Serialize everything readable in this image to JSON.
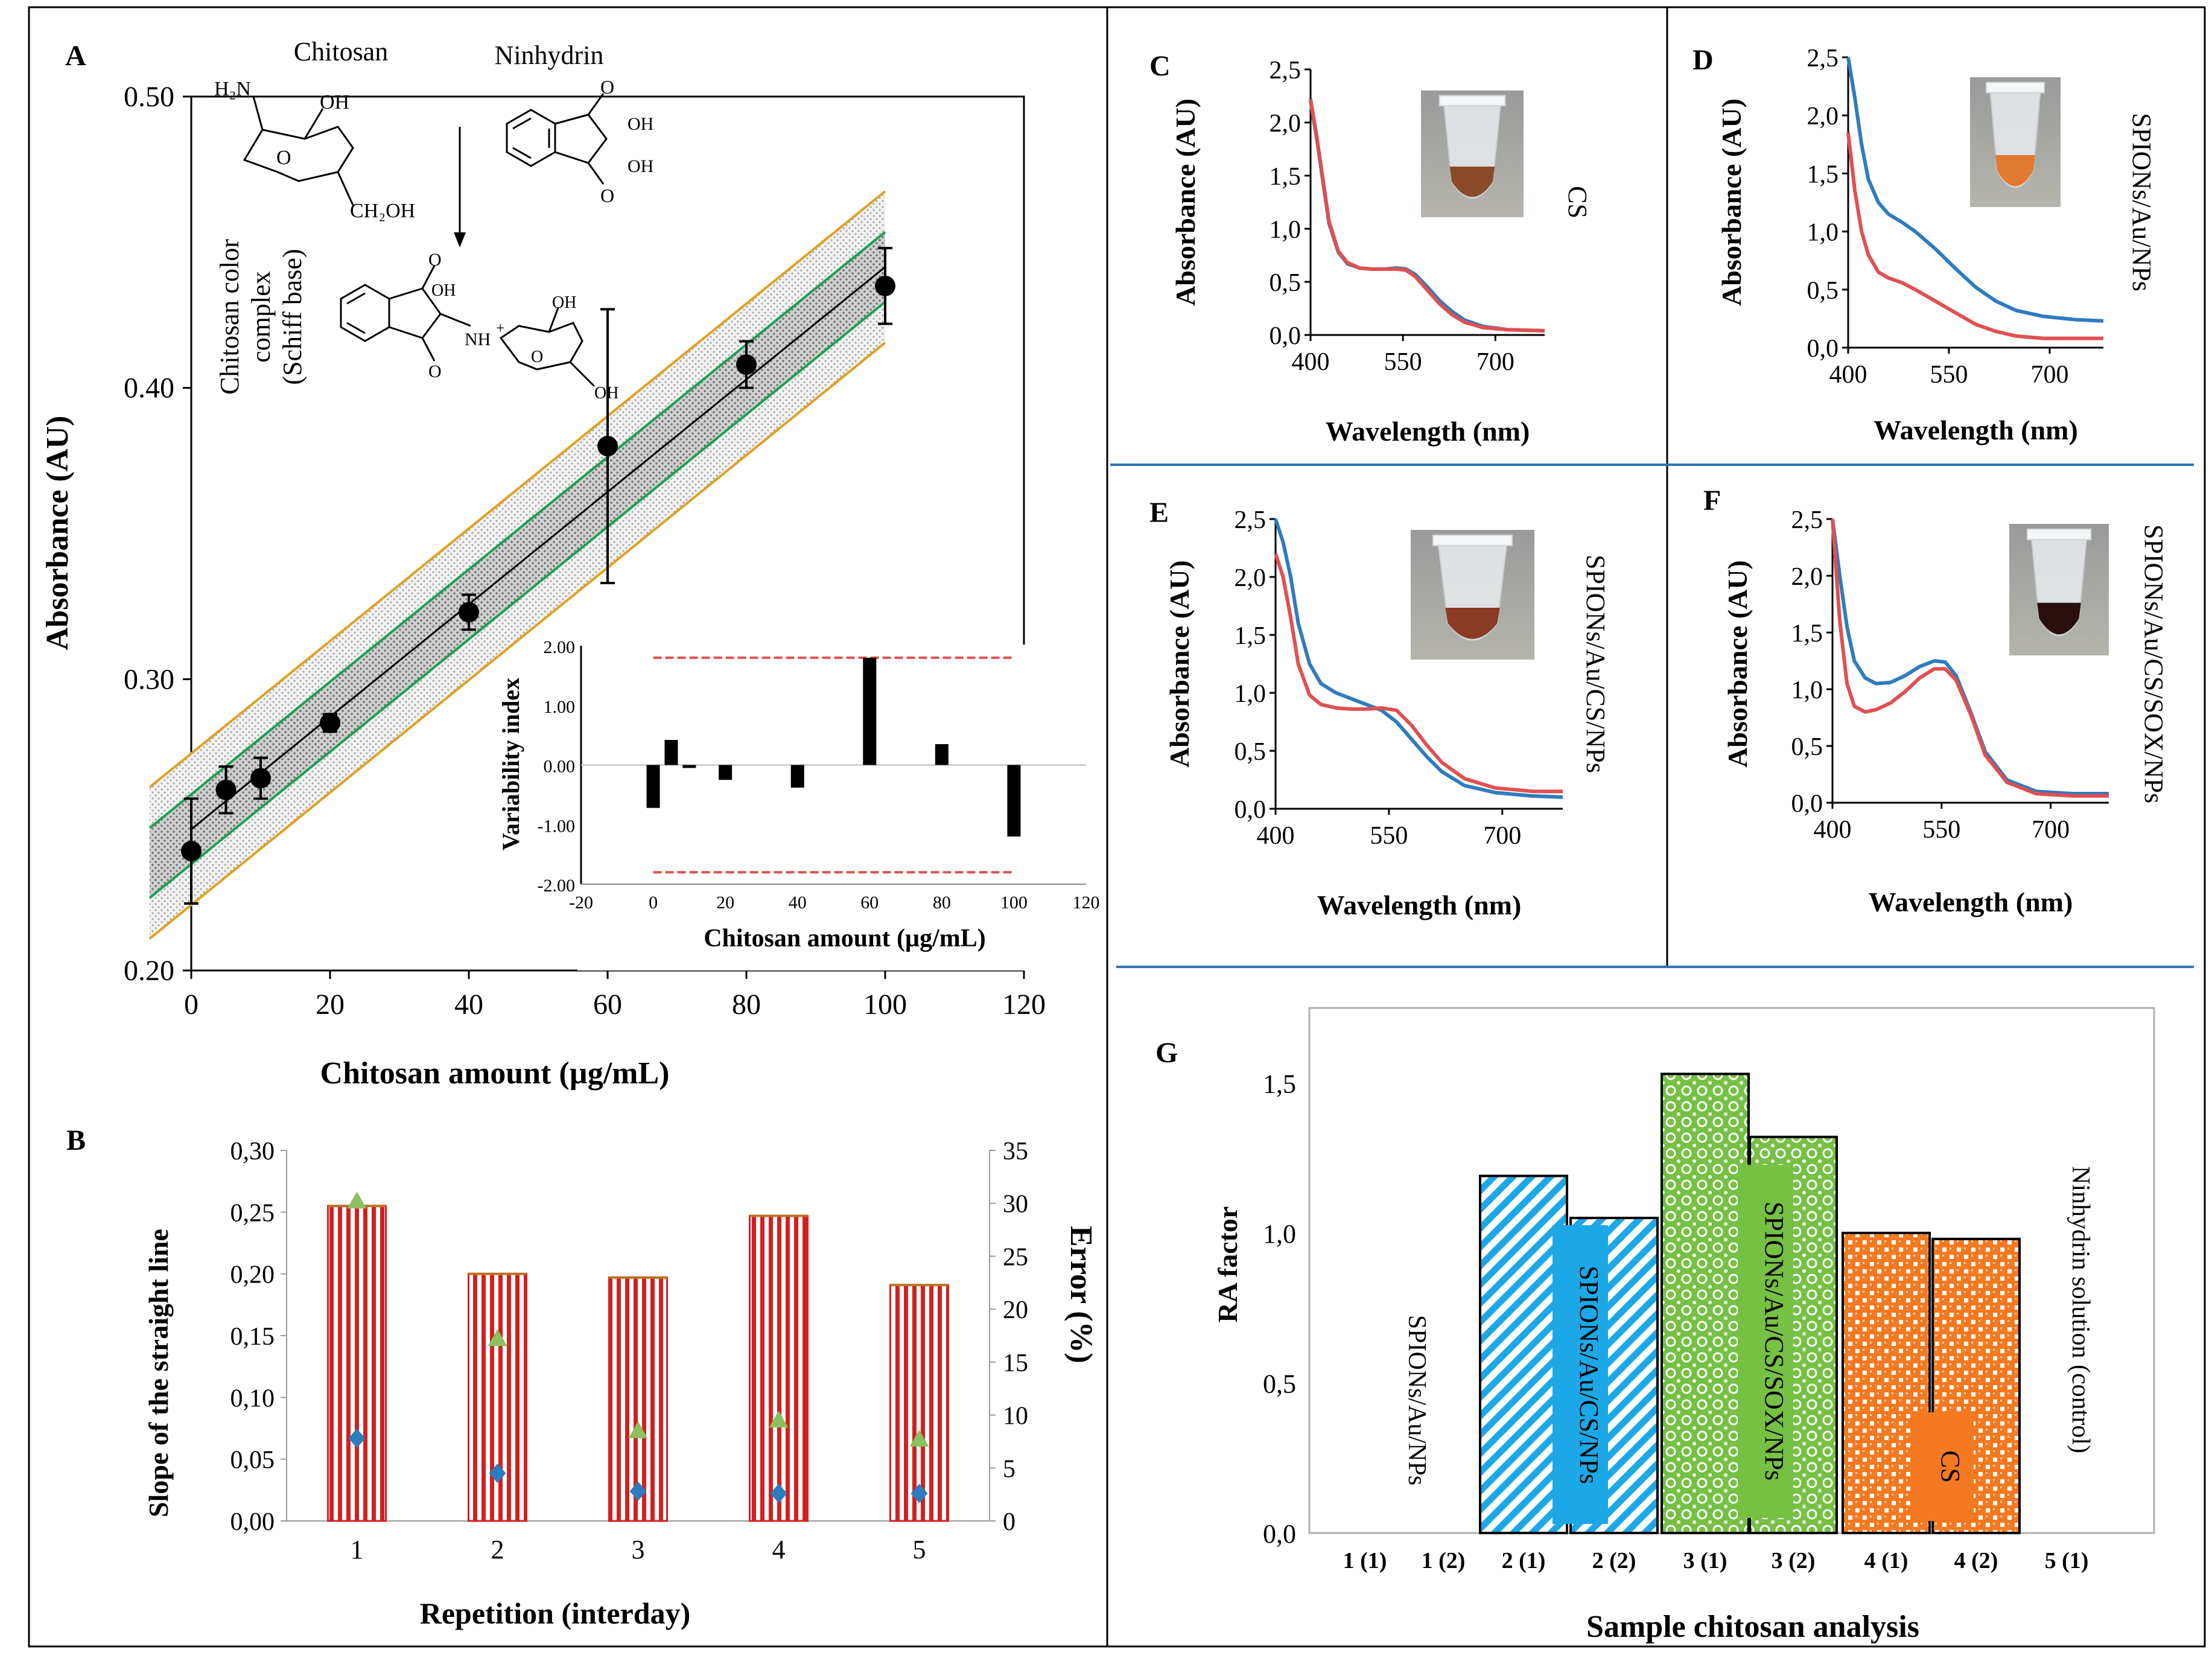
{
  "panels": {
    "A": {
      "label": "A",
      "chart_data": {
        "type": "scatter",
        "xlabel": "Chitosan amount (µg/mL)",
        "ylabel": "Absorbance (AU)",
        "xlim": [
          0,
          120
        ],
        "ylim": [
          0.2,
          0.5
        ],
        "xticks": [
          "0",
          "20",
          "40",
          "60",
          "80",
          "100",
          "120"
        ],
        "yticks": [
          "0.20",
          "0.30",
          "0.40",
          "0.50"
        ],
        "x": [
          0,
          5,
          10,
          20,
          40,
          60,
          80,
          100
        ],
        "y": [
          0.241,
          0.262,
          0.266,
          0.285,
          0.323,
          0.38,
          0.408,
          0.435
        ],
        "err": [
          0.018,
          0.008,
          0.007,
          0.003,
          0.006,
          0.047,
          0.008,
          0.013
        ],
        "fit": {
          "intercept": 0.2485,
          "slope": 0.00193
        },
        "confidence_band": 0.012,
        "prediction_band": 0.026
      },
      "scheme": {
        "chitosan": "Chitosan",
        "ninhydrin": "Ninhydrin",
        "nh2": "H₂N",
        "oh": "OH",
        "ch2oh": "CH₂OH",
        "nh": "NH",
        "plus": "+",
        "complex_lines": [
          "Chitosan color",
          "complex",
          "(Schiff base)"
        ]
      }
    },
    "A_inset": {
      "chart_data": {
        "type": "bar",
        "xlabel": "Chitosan amount (µg/mL)",
        "ylabel": "Variability index",
        "xlim": [
          -20,
          120
        ],
        "ylim": [
          -2.0,
          2.0
        ],
        "xticks": [
          "-20",
          "0",
          "20",
          "40",
          "60",
          "80",
          "100",
          "120"
        ],
        "yticks": [
          "-2.00",
          "-1.00",
          "0.00",
          "1.00",
          "2.00"
        ],
        "x": [
          0,
          5,
          10,
          20,
          40,
          60,
          80,
          100
        ],
        "values": [
          -0.72,
          0.42,
          -0.05,
          -0.25,
          -0.38,
          1.8,
          0.35,
          -1.2
        ],
        "limit": 1.8
      }
    },
    "B": {
      "label": "B",
      "chart_data": {
        "type": "bar",
        "xlabel": "Repetition (interday)",
        "ylabel": "Slope of the straight line",
        "y2label": "Error (%)",
        "categories": [
          "1",
          "2",
          "3",
          "4",
          "5"
        ],
        "ylim": [
          0,
          0.3
        ],
        "y2lim": [
          0,
          35
        ],
        "yticks": [
          "0,00",
          "0,05",
          "0,10",
          "0,15",
          "0,20",
          "0,25",
          "0,30"
        ],
        "y2ticks": [
          "0",
          "5",
          "10",
          "15",
          "20",
          "25",
          "30",
          "35"
        ],
        "series": [
          {
            "name": "slope",
            "values": [
              0.255,
              0.2,
              0.197,
              0.247,
              0.191
            ]
          },
          {
            "name": "error triangle",
            "values": [
              30.2,
              17.2,
              8.5,
              9.5,
              7.7
            ]
          },
          {
            "name": "error diamond",
            "values": [
              7.8,
              4.5,
              2.8,
              2.6,
              2.6
            ]
          }
        ]
      }
    },
    "C": {
      "label": "C",
      "side_label": "CS",
      "chart_data": {
        "type": "line",
        "xlabel": "Wavelength (nm)",
        "ylabel": "Absorbance (AU)",
        "xticks": [
          "400",
          "550",
          "700"
        ],
        "yticks": [
          "0,0",
          "0,5",
          "1,0",
          "1,5",
          "2,0",
          "2,5"
        ],
        "xlim": [
          400,
          780
        ],
        "ylim": [
          0,
          2.5
        ],
        "series": [
          {
            "name": "blue",
            "x": [
              400,
              410,
              420,
              430,
              445,
              460,
              480,
              500,
              520,
              540,
              555,
              570,
              590,
              610,
              630,
              650,
              680,
              720,
              780
            ],
            "y": [
              2.2,
              1.85,
              1.45,
              1.05,
              0.78,
              0.67,
              0.63,
              0.62,
              0.62,
              0.63,
              0.62,
              0.57,
              0.45,
              0.32,
              0.22,
              0.14,
              0.08,
              0.05,
              0.04
            ]
          },
          {
            "name": "red",
            "x": [
              400,
              410,
              420,
              430,
              445,
              460,
              480,
              500,
              520,
              540,
              555,
              570,
              590,
              610,
              630,
              650,
              680,
              720,
              780
            ],
            "y": [
              2.22,
              1.87,
              1.47,
              1.07,
              0.79,
              0.68,
              0.63,
              0.62,
              0.62,
              0.62,
              0.61,
              0.55,
              0.42,
              0.29,
              0.19,
              0.12,
              0.07,
              0.05,
              0.04
            ]
          }
        ]
      }
    },
    "D": {
      "label": "D",
      "side_label": "SPIONs/Au/NPs",
      "chart_data": {
        "type": "line",
        "xlabel": "Wavelength (nm)",
        "ylabel": "Absorbance (AU)",
        "xticks": [
          "400",
          "550",
          "700"
        ],
        "yticks": [
          "0,0",
          "0,5",
          "1,0",
          "1,5",
          "2,0",
          "2,5"
        ],
        "xlim": [
          400,
          780
        ],
        "ylim": [
          0,
          2.5
        ],
        "series": [
          {
            "name": "blue",
            "x": [
              400,
              410,
              420,
              430,
              445,
              460,
              480,
              500,
              530,
              560,
              590,
              620,
              650,
              690,
              740,
              780
            ],
            "y": [
              2.5,
              2.15,
              1.75,
              1.45,
              1.25,
              1.15,
              1.08,
              1.0,
              0.85,
              0.68,
              0.52,
              0.4,
              0.32,
              0.27,
              0.24,
              0.23
            ]
          },
          {
            "name": "red",
            "x": [
              400,
              410,
              420,
              430,
              445,
              460,
              480,
              500,
              530,
              560,
              590,
              620,
              650,
              690,
              740,
              780
            ],
            "y": [
              1.85,
              1.35,
              1.0,
              0.8,
              0.65,
              0.6,
              0.56,
              0.5,
              0.4,
              0.3,
              0.2,
              0.14,
              0.1,
              0.08,
              0.08,
              0.08
            ]
          }
        ]
      }
    },
    "E": {
      "label": "E",
      "side_label": "SPIONs/Au/CS/NPs",
      "chart_data": {
        "type": "line",
        "xlabel": "Wavelength (nm)",
        "ylabel": "Absorbance (AU)",
        "xticks": [
          "400",
          "550",
          "700"
        ],
        "yticks": [
          "0,0",
          "0,5",
          "1,0",
          "1,5",
          "2,0",
          "2,5"
        ],
        "xlim": [
          400,
          780
        ],
        "ylim": [
          0,
          2.5
        ],
        "series": [
          {
            "name": "blue",
            "x": [
              400,
              410,
              420,
              430,
              445,
              460,
              480,
              500,
              520,
              540,
              560,
              580,
              600,
              620,
              650,
              690,
              740,
              780
            ],
            "y": [
              2.5,
              2.3,
              2.0,
              1.6,
              1.25,
              1.08,
              1.0,
              0.95,
              0.9,
              0.85,
              0.75,
              0.6,
              0.45,
              0.32,
              0.2,
              0.14,
              0.11,
              0.1
            ]
          },
          {
            "name": "red",
            "x": [
              400,
              410,
              420,
              430,
              445,
              460,
              480,
              500,
              520,
              540,
              560,
              580,
              600,
              620,
              650,
              690,
              740,
              780
            ],
            "y": [
              2.2,
              2.0,
              1.65,
              1.25,
              0.98,
              0.9,
              0.87,
              0.86,
              0.86,
              0.87,
              0.85,
              0.72,
              0.55,
              0.4,
              0.26,
              0.18,
              0.15,
              0.15
            ]
          }
        ]
      }
    },
    "F": {
      "label": "F",
      "side_label": "SPIONs/Au/CS/SOX/NPs",
      "chart_data": {
        "type": "line",
        "xlabel": "Wavelength (nm)",
        "ylabel": "Absorbance (AU)",
        "xticks": [
          "400",
          "550",
          "700"
        ],
        "yticks": [
          "0,0",
          "0,5",
          "1,0",
          "1,5",
          "2,0",
          "2,5"
        ],
        "xlim": [
          400,
          780
        ],
        "ylim": [
          0,
          2.5
        ],
        "series": [
          {
            "name": "blue",
            "x": [
              400,
              410,
              420,
              430,
              445,
              460,
              480,
              500,
              520,
              540,
              555,
              570,
              590,
              610,
              640,
              680,
              730,
              780
            ],
            "y": [
              2.5,
              2.0,
              1.55,
              1.25,
              1.1,
              1.05,
              1.06,
              1.12,
              1.2,
              1.25,
              1.24,
              1.12,
              0.8,
              0.45,
              0.2,
              0.1,
              0.08,
              0.08
            ]
          },
          {
            "name": "red",
            "x": [
              400,
              410,
              420,
              430,
              445,
              460,
              480,
              500,
              520,
              540,
              555,
              570,
              590,
              610,
              640,
              680,
              730,
              780
            ],
            "y": [
              2.5,
              1.6,
              1.05,
              0.85,
              0.8,
              0.82,
              0.88,
              0.98,
              1.1,
              1.18,
              1.18,
              1.08,
              0.78,
              0.42,
              0.18,
              0.08,
              0.06,
              0.06
            ]
          }
        ]
      }
    },
    "G": {
      "label": "G",
      "chart_data": {
        "type": "bar",
        "xlabel": "Sample chitosan analysis",
        "ylabel": "RA factor",
        "ylim": [
          0,
          1.75
        ],
        "yticks": [
          "0,0",
          "0,5",
          "1,0",
          "1,5"
        ],
        "categories": [
          "1 (1)",
          "1 (2)",
          "2 (1)",
          "2 (2)",
          "3 (1)",
          "3 (2)",
          "4 (1)",
          "4 (2)",
          "5 (1)"
        ],
        "values": [
          0,
          0,
          1.19,
          1.05,
          1.53,
          1.32,
          1.0,
          0.98,
          0
        ],
        "group_labels": [
          "SPIONs/Au/NPs",
          "SPIONs/Au/CS/NPs",
          "SPIONs/Au/CS/SOX/NPs",
          "CS",
          "Ninhydrin solution (control)"
        ]
      }
    }
  },
  "colors": {
    "black": "#000000",
    "red": "#e05050",
    "blue": "#2e7bbf",
    "green_line": "#1aa050",
    "orange_line": "#e0a020",
    "bar_red": "#d22020",
    "green_tri": "#8cc060",
    "blue_diamond": "#2e7bbf",
    "cyan": "#1ca8e6",
    "lime": "#76c043",
    "orange": "#f47920",
    "divider": "#2e75b6"
  }
}
